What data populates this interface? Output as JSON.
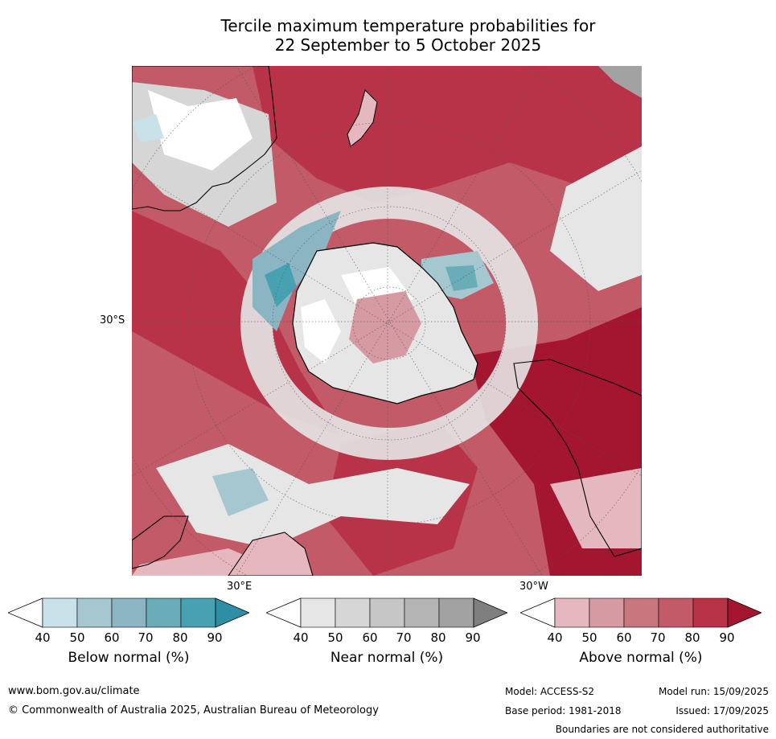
{
  "title": {
    "line1": "Tercile maximum temperature probabilities for",
    "line2": "22 September to 5 October 2025"
  },
  "map": {
    "projection": "south-polar stereographic",
    "graticule_labels": {
      "lat": "30°S",
      "lon_east": "30°E",
      "lon_west": "30°W"
    }
  },
  "legends": [
    {
      "label": "Below normal (%)",
      "ticks": [
        "40",
        "50",
        "60",
        "70",
        "80",
        "90"
      ],
      "colors": [
        "#ffffff",
        "#c9e1e8",
        "#a5c7d0",
        "#8cb5c4",
        "#6aadb8",
        "#47a1b0",
        "#2e8ea6"
      ]
    },
    {
      "label": "Near normal (%)",
      "ticks": [
        "40",
        "50",
        "60",
        "70",
        "80",
        "90"
      ],
      "colors": [
        "#ffffff",
        "#e6e6e6",
        "#d6d6d6",
        "#c6c6c6",
        "#b4b4b4",
        "#a2a2a2",
        "#7f7f7f"
      ]
    },
    {
      "label": "Above normal (%)",
      "ticks": [
        "40",
        "50",
        "60",
        "70",
        "80",
        "90"
      ],
      "colors": [
        "#ffffff",
        "#e4b8be",
        "#d69aa3",
        "#c9767f",
        "#c25a67",
        "#b83347",
        "#a4162f"
      ]
    }
  ],
  "footer": {
    "website": "www.bom.gov.au/climate",
    "copyright": "© Commonwealth of Australia 2025, Australian Bureau of Meteorology",
    "model": "Model: ACCESS-S2",
    "base_period": "Base period: 1981-2018",
    "model_run": "Model run: 15/09/2025",
    "issued": "Issued: 17/09/2025",
    "disclaimer": "Boundaries are not considered authoritative"
  }
}
